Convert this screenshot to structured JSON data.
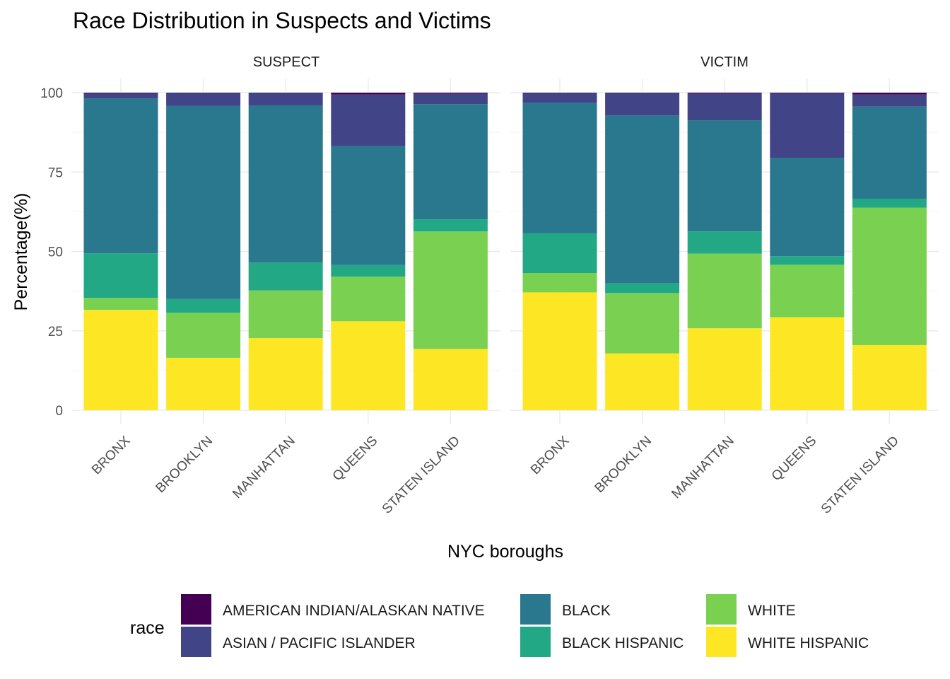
{
  "chart_data": {
    "type": "bar",
    "stacked": true,
    "title": "Race Distribution in Suspects and Victims",
    "xlabel": "NYC boroughs",
    "ylabel": "Percentage(%)",
    "ylim": [
      0,
      100
    ],
    "yticks": [
      0,
      25,
      50,
      75,
      100
    ],
    "grid": true,
    "legend_position": "bottom",
    "legend_title": "race",
    "categories": [
      "BRONX",
      "BROOKLYN",
      "MANHATTAN",
      "QUEENS",
      "STATEN ISLAND"
    ],
    "series": [
      {
        "name": "AMERICAN INDIAN/ALASKAN NATIVE",
        "color": "#440154"
      },
      {
        "name": "ASIAN / PACIFIC ISLANDER",
        "color": "#414487"
      },
      {
        "name": "BLACK",
        "color": "#2A788E"
      },
      {
        "name": "BLACK HISPANIC",
        "color": "#22A884"
      },
      {
        "name": "WHITE",
        "color": "#7AD151"
      },
      {
        "name": "WHITE HISPANIC",
        "color": "#FDE725"
      }
    ],
    "panels": [
      {
        "label": "SUSPECT",
        "values": {
          "AMERICAN INDIAN/ALASKAN NATIVE": [
            0.2,
            0.1,
            0.1,
            0.6,
            0.3
          ],
          "ASIAN / PACIFIC ISLANDER": [
            1.6,
            4.1,
            3.9,
            16.2,
            3.3
          ],
          "BLACK": [
            48.8,
            60.8,
            49.5,
            37.5,
            36.3
          ],
          "BLACK HISPANIC": [
            14.0,
            4.3,
            8.8,
            3.6,
            3.8
          ],
          "WHITE": [
            3.8,
            14.2,
            15.0,
            14.1,
            37.0
          ],
          "WHITE HISPANIC": [
            31.6,
            16.5,
            22.7,
            28.0,
            19.3
          ]
        }
      },
      {
        "label": "VICTIM",
        "values": {
          "AMERICAN INDIAN/ALASKAN NATIVE": [
            0.1,
            0.1,
            0.3,
            0.2,
            0.6
          ],
          "ASIAN / PACIFIC ISLANDER": [
            3.1,
            7.1,
            8.4,
            20.3,
            3.8
          ],
          "BLACK": [
            41.1,
            52.8,
            35.0,
            31.0,
            29.0
          ],
          "BLACK HISPANIC": [
            12.5,
            3.1,
            7.0,
            2.7,
            2.8
          ],
          "WHITE": [
            6.1,
            19.0,
            23.5,
            16.5,
            43.3
          ],
          "WHITE HISPANIC": [
            37.1,
            17.9,
            25.8,
            29.3,
            20.5
          ]
        }
      }
    ]
  }
}
